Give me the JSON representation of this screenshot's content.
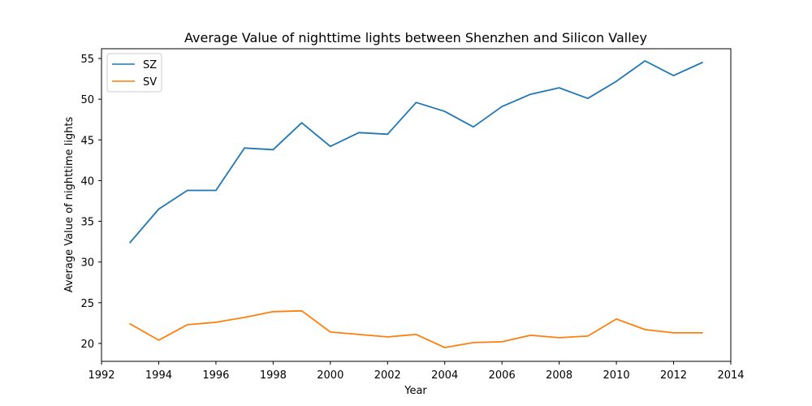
{
  "chart_data": {
    "type": "line",
    "title": "Average Value of nighttime lights between Shenzhen and Silicon Valley",
    "xlabel": "Year",
    "ylabel": "Average Value of nighttime lights",
    "xlim": [
      1992,
      2014
    ],
    "ylim": [
      17.8,
      56.2
    ],
    "xticks": [
      1992,
      1994,
      1996,
      1998,
      2000,
      2002,
      2004,
      2006,
      2008,
      2010,
      2012,
      2014
    ],
    "yticks": [
      20,
      25,
      30,
      35,
      40,
      45,
      50,
      55
    ],
    "grid": false,
    "legend_position": "top-left",
    "x": [
      1993,
      1994,
      1995,
      1996,
      1997,
      1998,
      1999,
      2000,
      2001,
      2002,
      2003,
      2004,
      2005,
      2006,
      2007,
      2008,
      2009,
      2010,
      2011,
      2012,
      2013
    ],
    "series": [
      {
        "name": "SZ",
        "color": "#1f77b4",
        "values": [
          32.4,
          36.5,
          38.8,
          38.8,
          44.0,
          43.8,
          47.1,
          44.2,
          45.9,
          45.7,
          49.6,
          48.5,
          46.6,
          49.1,
          50.6,
          51.4,
          50.1,
          52.2,
          54.7,
          52.9,
          54.5
        ]
      },
      {
        "name": "SV",
        "color": "#ff7f0e",
        "values": [
          22.4,
          20.4,
          22.3,
          22.6,
          23.2,
          23.9,
          24.0,
          21.4,
          21.1,
          20.8,
          21.1,
          19.5,
          20.1,
          20.2,
          21.0,
          20.7,
          20.9,
          23.0,
          21.7,
          21.3,
          21.3
        ]
      }
    ]
  }
}
